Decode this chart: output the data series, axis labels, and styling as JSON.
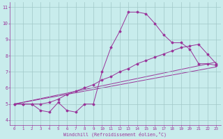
{
  "bg_color": "#c8ecec",
  "line_color": "#993399",
  "grid_color": "#a0c8c8",
  "xlabel": "Windchill (Refroidissement éolien,°C)",
  "xlim": [
    -0.5,
    23.5
  ],
  "ylim": [
    3.7,
    11.3
  ],
  "yticks": [
    4,
    5,
    6,
    7,
    8,
    9,
    10,
    11
  ],
  "xticks": [
    0,
    1,
    2,
    3,
    4,
    5,
    6,
    7,
    8,
    9,
    10,
    11,
    12,
    13,
    14,
    15,
    16,
    17,
    18,
    19,
    20,
    21,
    22,
    23
  ],
  "series1_x": [
    0,
    1,
    2,
    3,
    4,
    5,
    6,
    7,
    8,
    9,
    10,
    11,
    12,
    13,
    14,
    15,
    16,
    17,
    18,
    19,
    20,
    21,
    22,
    23
  ],
  "series1_y": [
    5.0,
    5.0,
    5.0,
    4.6,
    4.5,
    5.1,
    4.6,
    4.5,
    5.0,
    5.0,
    7.0,
    8.5,
    9.5,
    10.7,
    10.7,
    10.6,
    10.0,
    9.3,
    8.8,
    8.8,
    8.4,
    7.5,
    7.5,
    7.4
  ],
  "series2_x": [
    0,
    1,
    2,
    3,
    4,
    5,
    6,
    7,
    8,
    9,
    10,
    11,
    12,
    13,
    14,
    15,
    16,
    17,
    18,
    19,
    20,
    21,
    22,
    23
  ],
  "series2_y": [
    5.0,
    5.0,
    5.0,
    5.0,
    5.1,
    5.3,
    5.6,
    5.8,
    6.0,
    6.2,
    6.5,
    6.7,
    7.0,
    7.2,
    7.5,
    7.7,
    7.9,
    8.1,
    8.3,
    8.5,
    8.6,
    8.7,
    8.1,
    7.5
  ],
  "line1_x": [
    0,
    23
  ],
  "line1_y": [
    5.0,
    7.6
  ],
  "line2_x": [
    0,
    23
  ],
  "line2_y": [
    5.0,
    7.3
  ]
}
